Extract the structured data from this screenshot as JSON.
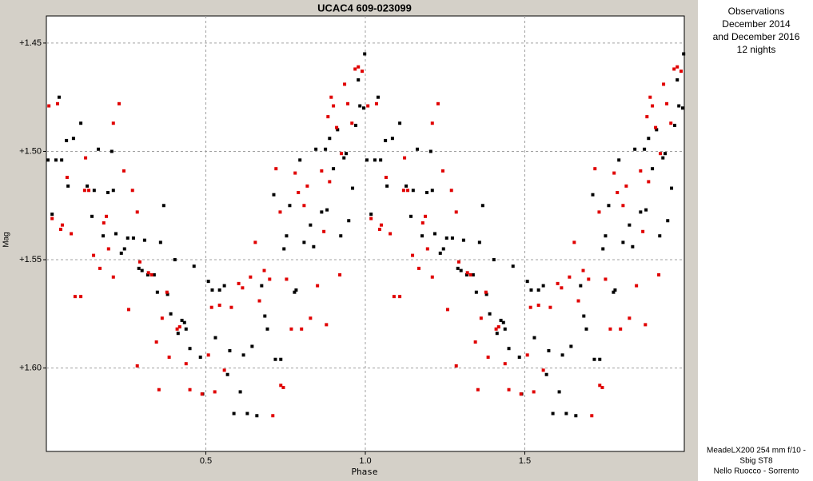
{
  "chart_data": {
    "type": "scatter",
    "title": "UCAC4 609-023099",
    "x_label": "Phase",
    "y_label": "Mag",
    "notes": [
      "Observations",
      "December 2014",
      "and December 2016",
      "12 nights"
    ],
    "credits": [
      "MeadeLX200 254 mm f/10 -",
      "Sbig ST8",
      "Nello Ruocco - Sorrento"
    ],
    "xlim": [
      0,
      2
    ],
    "xticks": [
      0.5,
      {
        "value": 1,
        "label": "1.0"
      },
      1.5
    ],
    "ylim": [
      1.4375,
      1.6385
    ],
    "y_inverted": true,
    "yticks": [
      {
        "value": 1.45,
        "label": "+1.45"
      },
      {
        "value": 1.5,
        "label": "+1.50"
      },
      {
        "value": 1.55,
        "label": "+1.55"
      },
      {
        "value": 1.6,
        "label": "+1.60"
      }
    ],
    "grid": true,
    "series": [
      {
        "color": "#000000",
        "x": [
          0.005,
          0.018,
          0.03,
          0.04,
          0.048,
          0.063,
          0.068,
          0.085,
          0.108,
          0.128,
          0.143,
          0.15,
          0.163,
          0.178,
          0.193,
          0.205,
          0.21,
          0.218,
          0.235,
          0.245,
          0.255,
          0.273,
          0.29,
          0.3,
          0.308,
          0.318,
          0.338,
          0.348,
          0.358,
          0.368,
          0.38,
          0.39,
          0.403,
          0.413,
          0.425,
          0.433,
          0.438,
          0.45,
          0.463,
          0.483,
          0.49,
          0.508,
          0.52,
          0.53,
          0.543,
          0.558,
          0.568,
          0.575,
          0.588,
          0.608,
          0.618,
          0.63,
          0.645,
          0.66,
          0.675,
          0.685,
          0.693,
          0.718,
          0.735,
          0.713,
          0.745,
          0.753,
          0.763,
          0.778,
          0.783,
          0.795,
          0.808,
          0.828,
          0.838,
          0.845,
          0.863,
          0.875,
          0.88,
          0.888,
          0.9,
          0.913,
          0.923,
          0.933,
          0.94,
          0.948,
          0.96,
          0.97,
          0.978,
          0.983,
          0.998,
          0.995,
          1.005,
          1.018,
          1.03,
          1.04,
          1.048,
          1.063,
          1.068,
          1.085,
          1.108,
          1.128,
          1.143,
          1.15,
          1.163,
          1.178,
          1.193,
          1.205,
          1.21,
          1.218,
          1.235,
          1.245,
          1.255,
          1.273,
          1.29,
          1.3,
          1.308,
          1.318,
          1.338,
          1.348,
          1.358,
          1.368,
          1.38,
          1.39,
          1.403,
          1.413,
          1.425,
          1.433,
          1.438,
          1.45,
          1.463,
          1.483,
          1.49,
          1.508,
          1.52,
          1.53,
          1.543,
          1.558,
          1.568,
          1.575,
          1.588,
          1.608,
          1.618,
          1.63,
          1.645,
          1.66,
          1.675,
          1.685,
          1.693,
          1.718,
          1.735,
          1.713,
          1.745,
          1.753,
          1.763,
          1.778,
          1.783,
          1.795,
          1.808,
          1.828,
          1.838,
          1.845,
          1.863,
          1.875,
          1.88,
          1.888,
          1.9,
          1.913,
          1.923,
          1.933,
          1.94,
          1.948,
          1.96,
          1.97,
          1.978,
          1.983,
          1.998,
          1.995
        ],
        "values": [
          1.504,
          1.529,
          1.504,
          1.475,
          1.504,
          1.495,
          1.516,
          1.494,
          1.487,
          1.516,
          1.53,
          1.518,
          1.499,
          1.539,
          1.519,
          1.5,
          1.518,
          1.538,
          1.547,
          1.545,
          1.54,
          1.54,
          1.554,
          1.555,
          1.541,
          1.557,
          1.557,
          1.565,
          1.542,
          1.525,
          1.566,
          1.575,
          1.55,
          1.584,
          1.578,
          1.579,
          1.582,
          1.591,
          1.553,
          1.595,
          1.612,
          1.56,
          1.564,
          1.586,
          1.564,
          1.562,
          1.603,
          1.592,
          1.621,
          1.611,
          1.594,
          1.621,
          1.59,
          1.622,
          1.562,
          1.576,
          1.582,
          1.596,
          1.596,
          1.52,
          1.545,
          1.539,
          1.525,
          1.565,
          1.564,
          1.504,
          1.542,
          1.534,
          1.544,
          1.499,
          1.528,
          1.499,
          1.527,
          1.494,
          1.508,
          1.49,
          1.539,
          1.503,
          1.501,
          1.532,
          1.517,
          1.488,
          1.467,
          1.479,
          1.455,
          1.48,
          1.504,
          1.529,
          1.504,
          1.475,
          1.504,
          1.495,
          1.516,
          1.494,
          1.487,
          1.516,
          1.53,
          1.518,
          1.499,
          1.539,
          1.519,
          1.5,
          1.518,
          1.538,
          1.547,
          1.545,
          1.54,
          1.54,
          1.554,
          1.555,
          1.541,
          1.557,
          1.557,
          1.565,
          1.542,
          1.525,
          1.566,
          1.575,
          1.55,
          1.584,
          1.578,
          1.579,
          1.582,
          1.591,
          1.553,
          1.595,
          1.612,
          1.56,
          1.564,
          1.586,
          1.564,
          1.562,
          1.603,
          1.592,
          1.621,
          1.611,
          1.594,
          1.621,
          1.59,
          1.622,
          1.562,
          1.576,
          1.582,
          1.596,
          1.596,
          1.52,
          1.545,
          1.539,
          1.525,
          1.565,
          1.564,
          1.504,
          1.542,
          1.534,
          1.544,
          1.499,
          1.528,
          1.499,
          1.527,
          1.494,
          1.508,
          1.49,
          1.539,
          1.503,
          1.501,
          1.532,
          1.517,
          1.488,
          1.467,
          1.479,
          1.455,
          1.48
        ]
      },
      {
        "color": "#e00000",
        "x": [
          0.008,
          0.018,
          0.035,
          0.045,
          0.05,
          0.065,
          0.078,
          0.09,
          0.108,
          0.12,
          0.123,
          0.133,
          0.148,
          0.168,
          0.18,
          0.188,
          0.195,
          0.21,
          0.21,
          0.228,
          0.243,
          0.258,
          0.27,
          0.285,
          0.285,
          0.293,
          0.32,
          0.33,
          0.345,
          0.353,
          0.363,
          0.378,
          0.385,
          0.41,
          0.418,
          0.438,
          0.45,
          0.488,
          0.508,
          0.518,
          0.528,
          0.543,
          0.558,
          0.58,
          0.603,
          0.615,
          0.64,
          0.655,
          0.668,
          0.683,
          0.7,
          0.71,
          0.72,
          0.733,
          0.735,
          0.743,
          0.753,
          0.768,
          0.78,
          0.79,
          0.8,
          0.808,
          0.818,
          0.828,
          0.85,
          0.863,
          0.87,
          0.878,
          0.883,
          0.888,
          0.893,
          0.9,
          0.91,
          0.92,
          0.925,
          0.935,
          0.945,
          0.958,
          0.968,
          0.978,
          0.99,
          1.008,
          1.018,
          1.035,
          1.045,
          1.05,
          1.065,
          1.078,
          1.09,
          1.108,
          1.12,
          1.123,
          1.133,
          1.148,
          1.168,
          1.18,
          1.188,
          1.195,
          1.21,
          1.21,
          1.228,
          1.243,
          1.258,
          1.27,
          1.285,
          1.285,
          1.293,
          1.32,
          1.33,
          1.345,
          1.353,
          1.363,
          1.378,
          1.385,
          1.41,
          1.418,
          1.438,
          1.45,
          1.488,
          1.508,
          1.518,
          1.528,
          1.543,
          1.558,
          1.58,
          1.603,
          1.615,
          1.64,
          1.655,
          1.668,
          1.683,
          1.7,
          1.71,
          1.72,
          1.733,
          1.735,
          1.743,
          1.753,
          1.768,
          1.78,
          1.79,
          1.8,
          1.808,
          1.818,
          1.828,
          1.85,
          1.863,
          1.87,
          1.878,
          1.883,
          1.888,
          1.893,
          1.9,
          1.91,
          1.92,
          1.925,
          1.935,
          1.945,
          1.958,
          1.968,
          1.978,
          1.99
        ],
        "values": [
          1.479,
          1.531,
          1.478,
          1.536,
          1.534,
          1.512,
          1.538,
          1.567,
          1.567,
          1.518,
          1.503,
          1.518,
          1.548,
          1.554,
          1.533,
          1.53,
          1.545,
          1.487,
          1.558,
          1.478,
          1.509,
          1.573,
          1.518,
          1.528,
          1.599,
          1.551,
          1.556,
          1.557,
          1.588,
          1.61,
          1.577,
          1.565,
          1.595,
          1.582,
          1.581,
          1.598,
          1.61,
          1.612,
          1.594,
          1.572,
          1.611,
          1.571,
          1.601,
          1.572,
          1.561,
          1.563,
          1.558,
          1.542,
          1.569,
          1.555,
          1.559,
          1.622,
          1.508,
          1.528,
          1.608,
          1.609,
          1.559,
          1.582,
          1.51,
          1.519,
          1.582,
          1.525,
          1.516,
          1.577,
          1.562,
          1.509,
          1.537,
          1.58,
          1.484,
          1.514,
          1.475,
          1.479,
          1.489,
          1.557,
          1.501,
          1.469,
          1.478,
          1.487,
          1.462,
          1.461,
          1.463,
          1.479,
          1.531,
          1.478,
          1.536,
          1.534,
          1.512,
          1.538,
          1.567,
          1.567,
          1.518,
          1.503,
          1.518,
          1.548,
          1.554,
          1.533,
          1.53,
          1.545,
          1.487,
          1.558,
          1.478,
          1.509,
          1.573,
          1.518,
          1.528,
          1.599,
          1.551,
          1.556,
          1.557,
          1.588,
          1.61,
          1.577,
          1.565,
          1.595,
          1.582,
          1.581,
          1.598,
          1.61,
          1.612,
          1.594,
          1.572,
          1.611,
          1.571,
          1.601,
          1.572,
          1.561,
          1.563,
          1.558,
          1.542,
          1.569,
          1.555,
          1.559,
          1.622,
          1.508,
          1.528,
          1.608,
          1.609,
          1.559,
          1.582,
          1.51,
          1.519,
          1.582,
          1.525,
          1.516,
          1.577,
          1.562,
          1.509,
          1.537,
          1.58,
          1.484,
          1.514,
          1.475,
          1.479,
          1.489,
          1.557,
          1.501,
          1.469,
          1.478,
          1.487,
          1.462,
          1.461,
          1.463
        ]
      }
    ]
  }
}
